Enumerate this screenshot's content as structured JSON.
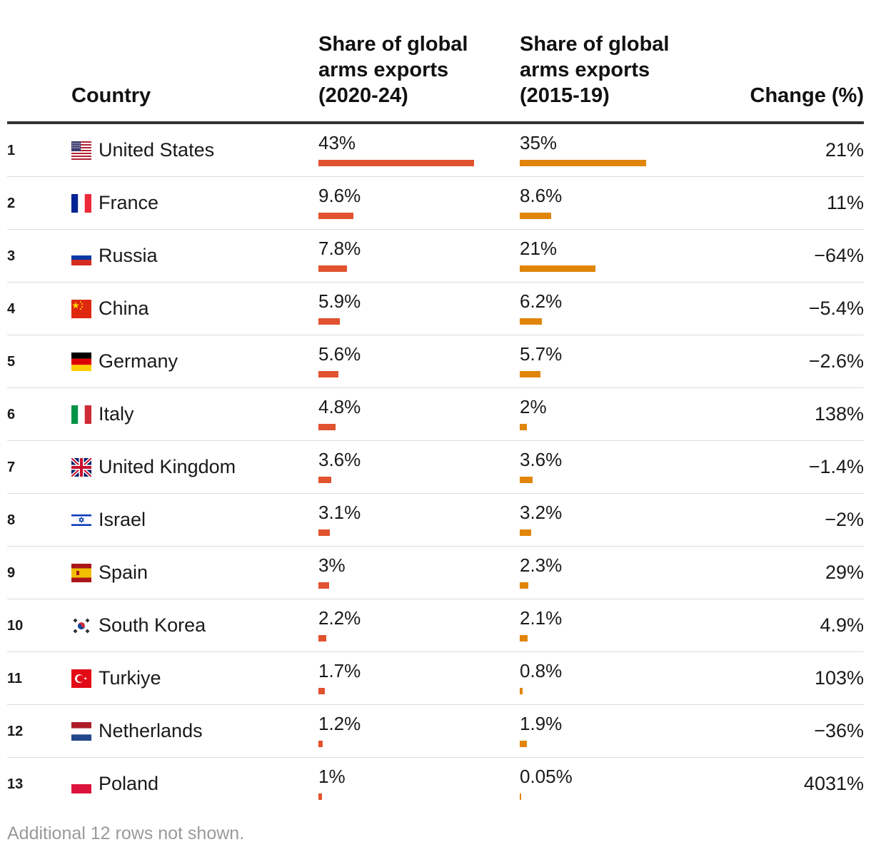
{
  "headers": {
    "country": "Country",
    "share_2020_24": [
      "Share of global",
      "arms exports",
      "(2020-24)"
    ],
    "share_2015_19": [
      "Share of global",
      "arms exports",
      "(2015-19)"
    ],
    "change": "Change (%)"
  },
  "colors": {
    "bar_2020_24": "#e1522f",
    "bar_2015_19": "#e0850a",
    "header_rule": "#333333",
    "row_rule": "#dddddd"
  },
  "rows": [
    {
      "rank": "1",
      "country": "United States",
      "flag": "us-flag-icon",
      "s2020_24": "43%",
      "s2015_19": "35%",
      "change": "21%"
    },
    {
      "rank": "2",
      "country": "France",
      "flag": "france-flag-icon",
      "s2020_24": "9.6%",
      "s2015_19": "8.6%",
      "change": "11%"
    },
    {
      "rank": "3",
      "country": "Russia",
      "flag": "russia-flag-icon",
      "s2020_24": "7.8%",
      "s2015_19": "21%",
      "change": "−64%"
    },
    {
      "rank": "4",
      "country": "China",
      "flag": "china-flag-icon",
      "s2020_24": "5.9%",
      "s2015_19": "6.2%",
      "change": "−5.4%"
    },
    {
      "rank": "5",
      "country": "Germany",
      "flag": "germany-flag-icon",
      "s2020_24": "5.6%",
      "s2015_19": "5.7%",
      "change": "−2.6%"
    },
    {
      "rank": "6",
      "country": "Italy",
      "flag": "italy-flag-icon",
      "s2020_24": "4.8%",
      "s2015_19": "2%",
      "change": "138%"
    },
    {
      "rank": "7",
      "country": "United Kingdom",
      "flag": "uk-flag-icon",
      "s2020_24": "3.6%",
      "s2015_19": "3.6%",
      "change": "−1.4%"
    },
    {
      "rank": "8",
      "country": "Israel",
      "flag": "israel-flag-icon",
      "s2020_24": "3.1%",
      "s2015_19": "3.2%",
      "change": "−2%"
    },
    {
      "rank": "9",
      "country": "Spain",
      "flag": "spain-flag-icon",
      "s2020_24": "3%",
      "s2015_19": "2.3%",
      "change": "29%"
    },
    {
      "rank": "10",
      "country": "South Korea",
      "flag": "south-korea-flag-icon",
      "s2020_24": "2.2%",
      "s2015_19": "2.1%",
      "change": "4.9%"
    },
    {
      "rank": "11",
      "country": "Turkiye",
      "flag": "turkiye-flag-icon",
      "s2020_24": "1.7%",
      "s2015_19": "0.8%",
      "change": "103%"
    },
    {
      "rank": "12",
      "country": "Netherlands",
      "flag": "netherlands-flag-icon",
      "s2020_24": "1.2%",
      "s2015_19": "1.9%",
      "change": "−36%"
    },
    {
      "rank": "13",
      "country": "Poland",
      "flag": "poland-flag-icon",
      "s2020_24": "1%",
      "s2015_19": "0.05%",
      "change": "4031%"
    }
  ],
  "footnote": "Additional 12 rows not shown.",
  "chart_data": {
    "type": "table",
    "columns": [
      "Country",
      "Share of global arms exports (2020-24)",
      "Share of global arms exports (2015-19)",
      "Change (%)"
    ],
    "bar_max_percent": 43,
    "series": [
      {
        "name": "Share of global arms exports (2020-24)",
        "values": [
          43,
          9.6,
          7.8,
          5.9,
          5.6,
          4.8,
          3.6,
          3.1,
          3,
          2.2,
          1.7,
          1.2,
          1
        ]
      },
      {
        "name": "Share of global arms exports (2015-19)",
        "values": [
          35,
          8.6,
          21,
          6.2,
          5.7,
          2,
          3.6,
          3.2,
          2.3,
          2.1,
          0.8,
          1.9,
          0.05
        ]
      },
      {
        "name": "Change (%)",
        "values": [
          21,
          11,
          -64,
          -5.4,
          -2.6,
          138,
          -1.4,
          -2,
          29,
          4.9,
          103,
          -36,
          4031
        ]
      }
    ],
    "categories": [
      "United States",
      "France",
      "Russia",
      "China",
      "Germany",
      "Italy",
      "United Kingdom",
      "Israel",
      "Spain",
      "South Korea",
      "Turkiye",
      "Netherlands",
      "Poland"
    ]
  }
}
